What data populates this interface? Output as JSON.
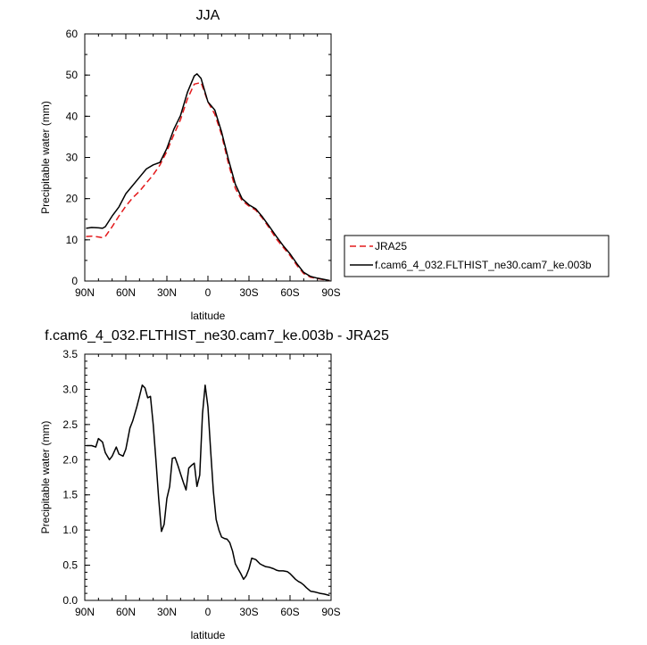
{
  "colors": {
    "axis": "#000000",
    "obs": "#e41a1c",
    "model": "#000000"
  },
  "chart_data": [
    {
      "type": "line",
      "title": "JJA",
      "xlabel": "latitude",
      "ylabel": "Precipitable water (mm)",
      "xlim": [
        90,
        -90
      ],
      "ylim": [
        0,
        60
      ],
      "xticks": [
        90,
        60,
        30,
        0,
        -30,
        -60,
        -90
      ],
      "xtick_labels": [
        "90N",
        "60N",
        "30N",
        "0",
        "30S",
        "60S",
        "90S"
      ],
      "yticks": [
        0,
        10,
        20,
        30,
        40,
        50,
        60
      ],
      "ytick_labels": [
        "0",
        "10",
        "20",
        "30",
        "40",
        "50",
        "60"
      ],
      "legend_position": "right",
      "series": [
        {
          "name": "JRA25",
          "color": "#e41a1c",
          "dash": "dashed",
          "x": [
            89,
            85,
            80,
            77,
            75,
            70,
            65,
            60,
            55,
            50,
            45,
            40,
            35,
            30,
            25,
            20,
            15,
            10,
            5,
            0,
            -5,
            -10,
            -15,
            -20,
            -25,
            -30,
            -35,
            -40,
            -45,
            -50,
            -55,
            -60,
            -65,
            -70,
            -75,
            -80,
            -85,
            -89
          ],
          "y": [
            10.8,
            10.9,
            10.7,
            10.5,
            10.8,
            13.2,
            15.8,
            18.2,
            20.2,
            21.8,
            23.8,
            25.8,
            28.2,
            31.5,
            35.5,
            39.2,
            44.2,
            47.8,
            48.2,
            43.5,
            40.5,
            35.5,
            28.5,
            22.5,
            19.5,
            18.2,
            17.2,
            15.2,
            12.8,
            10.2,
            8.2,
            6.2,
            3.8,
            1.8,
            0.9,
            0.6,
            0.3,
            0.1
          ]
        },
        {
          "name": "f.cam6_4_032.FLTHIST_ne30.cam7_ke.003b",
          "color": "#000000",
          "dash": "solid",
          "x": [
            89,
            85,
            80,
            77,
            75,
            70,
            65,
            60,
            55,
            50,
            45,
            40,
            35,
            30,
            25,
            20,
            15,
            10,
            8,
            5,
            0,
            -5,
            -10,
            -15,
            -20,
            -25,
            -30,
            -35,
            -40,
            -45,
            -50,
            -55,
            -60,
            -65,
            -70,
            -75,
            -80,
            -85,
            -89
          ],
          "y": [
            12.8,
            13.0,
            12.9,
            12.8,
            13.2,
            15.8,
            18.0,
            21.2,
            23.2,
            25.2,
            27.2,
            28.2,
            28.8,
            32.2,
            36.8,
            40.2,
            45.8,
            49.8,
            50.3,
            49.2,
            43.5,
            41.5,
            36.2,
            29.5,
            23.5,
            20.0,
            18.5,
            17.5,
            15.5,
            13.2,
            10.8,
            8.6,
            6.6,
            4.2,
            2.1,
            1.1,
            0.7,
            0.4,
            0.1
          ]
        }
      ]
    },
    {
      "type": "line",
      "title": "f.cam6_4_032.FLTHIST_ne30.cam7_ke.003b - JRA25",
      "xlabel": "latitude",
      "ylabel": "Precipitable water (mm)",
      "xlim": [
        90,
        -90
      ],
      "ylim": [
        0,
        3.5
      ],
      "xticks": [
        90,
        60,
        30,
        0,
        -30,
        -60,
        -90
      ],
      "xtick_labels": [
        "90N",
        "60N",
        "30N",
        "0",
        "30S",
        "60S",
        "90S"
      ],
      "yticks": [
        0,
        0.5,
        1.0,
        1.5,
        2.0,
        2.5,
        3.0,
        3.5
      ],
      "ytick_labels": [
        "0.0",
        "0.5",
        "1.0",
        "1.5",
        "2.0",
        "2.5",
        "3.0",
        "3.5"
      ],
      "series": [
        {
          "color": "#000000",
          "dash": "solid",
          "x": [
            89,
            85,
            82,
            80,
            77,
            75,
            72,
            70,
            67,
            65,
            62,
            60,
            57,
            55,
            52,
            50,
            48,
            46,
            44,
            42,
            40,
            38,
            36,
            34,
            32,
            30,
            28,
            26,
            24,
            22,
            20,
            18,
            16,
            14,
            12,
            10,
            8,
            6,
            4,
            2,
            0,
            -2,
            -4,
            -6,
            -8,
            -10,
            -12,
            -14,
            -16,
            -18,
            -20,
            -22,
            -24,
            -26,
            -28,
            -30,
            -32,
            -35,
            -38,
            -40,
            -42,
            -45,
            -48,
            -50,
            -52,
            -55,
            -58,
            -60,
            -62,
            -64,
            -66,
            -68,
            -70,
            -72,
            -75,
            -78,
            -80,
            -82,
            -85,
            -89
          ],
          "y": [
            2.2,
            2.2,
            2.18,
            2.3,
            2.25,
            2.1,
            2.0,
            2.05,
            2.18,
            2.08,
            2.05,
            2.15,
            2.45,
            2.55,
            2.75,
            2.9,
            3.06,
            3.02,
            2.88,
            2.9,
            2.5,
            2.0,
            1.45,
            0.98,
            1.08,
            1.45,
            1.62,
            2.02,
            2.03,
            1.92,
            1.8,
            1.68,
            1.57,
            1.88,
            1.92,
            1.95,
            1.62,
            1.78,
            2.65,
            3.06,
            2.75,
            2.12,
            1.55,
            1.15,
            1.0,
            0.9,
            0.88,
            0.87,
            0.82,
            0.7,
            0.52,
            0.45,
            0.38,
            0.3,
            0.35,
            0.45,
            0.6,
            0.58,
            0.52,
            0.5,
            0.48,
            0.47,
            0.45,
            0.43,
            0.42,
            0.42,
            0.41,
            0.38,
            0.34,
            0.3,
            0.27,
            0.25,
            0.22,
            0.18,
            0.13,
            0.12,
            0.11,
            0.1,
            0.09,
            0.07
          ]
        }
      ]
    }
  ]
}
